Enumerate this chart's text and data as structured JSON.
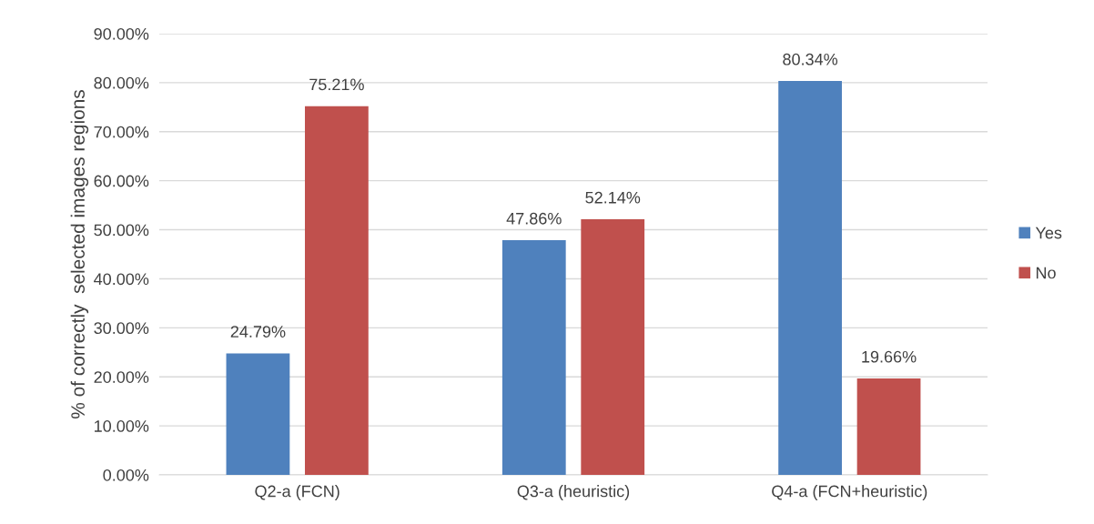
{
  "chart_data": {
    "type": "bar",
    "ylabel": "% of correctly  selected images regions",
    "categories": [
      "Q2-a (FCN)",
      "Q3-a (heuristic)",
      "Q4-a (FCN+heuristic)"
    ],
    "series": [
      {
        "name": "Yes",
        "color": "#4f81bd",
        "values": [
          24.79,
          47.86,
          80.34
        ],
        "value_labels": [
          "24.79%",
          "47.86%",
          "80.34%"
        ]
      },
      {
        "name": "No",
        "color": "#c0504d",
        "values": [
          75.21,
          52.14,
          19.66
        ],
        "value_labels": [
          "75.21%",
          "52.14%",
          "19.66%"
        ]
      }
    ],
    "ylim": [
      0,
      90
    ],
    "yticks": [
      {
        "value": 0,
        "label": "0.00%"
      },
      {
        "value": 10,
        "label": "10.00%"
      },
      {
        "value": 20,
        "label": "20.00%"
      },
      {
        "value": 30,
        "label": "30.00%"
      },
      {
        "value": 40,
        "label": "40.00%"
      },
      {
        "value": 50,
        "label": "50.00%"
      },
      {
        "value": 60,
        "label": "60.00%"
      },
      {
        "value": 70,
        "label": "70.00%"
      },
      {
        "value": 80,
        "label": "80.00%"
      },
      {
        "value": 90,
        "label": "90.00%"
      }
    ],
    "grid": "y",
    "legend": "right"
  }
}
